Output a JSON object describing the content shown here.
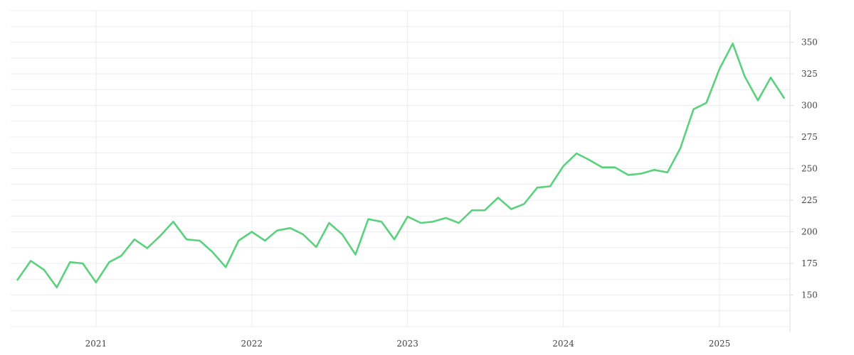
{
  "chart_data": {
    "type": "line",
    "title": "",
    "xlabel": "",
    "ylabel": "",
    "grid": true,
    "legend": "none",
    "y_axis_side": "right",
    "xlim": [
      "2020-06-15",
      "2025-06-15"
    ],
    "ylim": [
      125,
      375
    ],
    "y_ticks": [
      150,
      175,
      200,
      225,
      250,
      275,
      300,
      325,
      350
    ],
    "x_ticks": [
      {
        "date": "2021-01-01",
        "label": "2021"
      },
      {
        "date": "2022-01-01",
        "label": "2022"
      },
      {
        "date": "2023-01-01",
        "label": "2023"
      },
      {
        "date": "2024-01-01",
        "label": "2024"
      },
      {
        "date": "2025-01-01",
        "label": "2025"
      }
    ],
    "series": [
      {
        "color": "#5ad17c",
        "x": [
          "2020-07-01",
          "2020-08-01",
          "2020-09-01",
          "2020-10-01",
          "2020-11-01",
          "2020-12-01",
          "2021-01-01",
          "2021-02-01",
          "2021-03-01",
          "2021-04-01",
          "2021-05-01",
          "2021-06-01",
          "2021-07-01",
          "2021-08-01",
          "2021-09-01",
          "2021-10-01",
          "2021-11-01",
          "2021-12-01",
          "2022-01-01",
          "2022-02-01",
          "2022-03-01",
          "2022-04-01",
          "2022-05-01",
          "2022-06-01",
          "2022-07-01",
          "2022-08-01",
          "2022-09-01",
          "2022-10-01",
          "2022-11-01",
          "2022-12-01",
          "2023-01-01",
          "2023-02-01",
          "2023-03-01",
          "2023-04-01",
          "2023-05-01",
          "2023-06-01",
          "2023-07-01",
          "2023-08-01",
          "2023-09-01",
          "2023-10-01",
          "2023-11-01",
          "2023-12-01",
          "2024-01-01",
          "2024-02-01",
          "2024-03-01",
          "2024-04-01",
          "2024-05-01",
          "2024-06-01",
          "2024-07-01",
          "2024-08-01",
          "2024-09-01",
          "2024-10-01",
          "2024-11-01",
          "2024-12-01",
          "2025-01-01",
          "2025-02-01",
          "2025-03-01",
          "2025-04-01",
          "2025-05-01",
          "2025-06-01"
        ],
        "values": [
          162,
          177,
          170,
          156,
          176,
          175,
          160,
          176,
          181,
          194,
          187,
          197,
          208,
          194,
          193,
          184,
          172,
          193,
          200,
          193,
          201,
          203,
          198,
          188,
          207,
          198,
          182,
          210,
          208,
          194,
          212,
          207,
          208,
          211,
          207,
          217,
          217,
          227,
          218,
          222,
          235,
          236,
          252,
          262,
          257,
          251,
          251,
          245,
          246,
          249,
          247,
          266,
          297,
          302,
          329,
          349,
          323,
          304,
          322,
          306
        ]
      }
    ]
  }
}
